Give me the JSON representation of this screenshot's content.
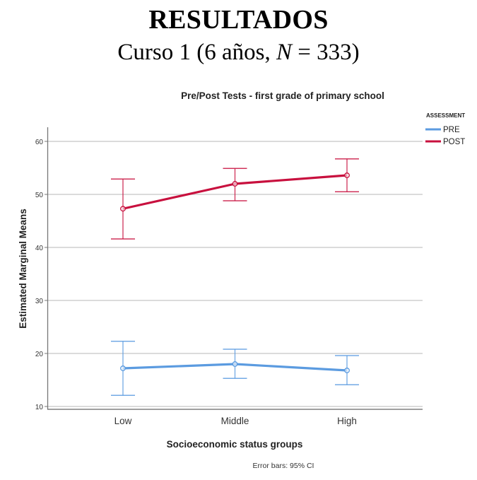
{
  "slide": {
    "heading": "RESULTADOS",
    "subheading_prefix": "Curso 1 (6 años, ",
    "subheading_n": "N",
    "subheading_suffix": " = 333)"
  },
  "chart_data": {
    "type": "line",
    "title": "Pre/Post Tests - first grade of primary school",
    "xlabel": "Socioeconomic status groups",
    "ylabel": "Estimated Marginal Means",
    "categories": [
      "Low",
      "Middle",
      "High"
    ],
    "ylim": [
      10,
      62
    ],
    "yticks": [
      10,
      20,
      30,
      40,
      50,
      60
    ],
    "ytick_labels": [
      "10",
      "20",
      "30",
      "40",
      "50",
      "60"
    ],
    "grid": true,
    "legend_title": "ASSESSMENT",
    "legend_position": "top-right",
    "footnote": "Error bars: 95% CI",
    "series": [
      {
        "name": "PRE",
        "color": "#5b9be0",
        "values": [
          17.2,
          18.0,
          16.8
        ],
        "ci_lower": [
          12.1,
          15.3,
          14.1
        ],
        "ci_upper": [
          22.3,
          20.8,
          19.6
        ]
      },
      {
        "name": "POST",
        "color": "#c8103e",
        "values": [
          47.3,
          52.0,
          53.6
        ],
        "ci_lower": [
          41.6,
          48.8,
          50.5
        ],
        "ci_upper": [
          52.9,
          54.9,
          56.7
        ]
      }
    ]
  }
}
